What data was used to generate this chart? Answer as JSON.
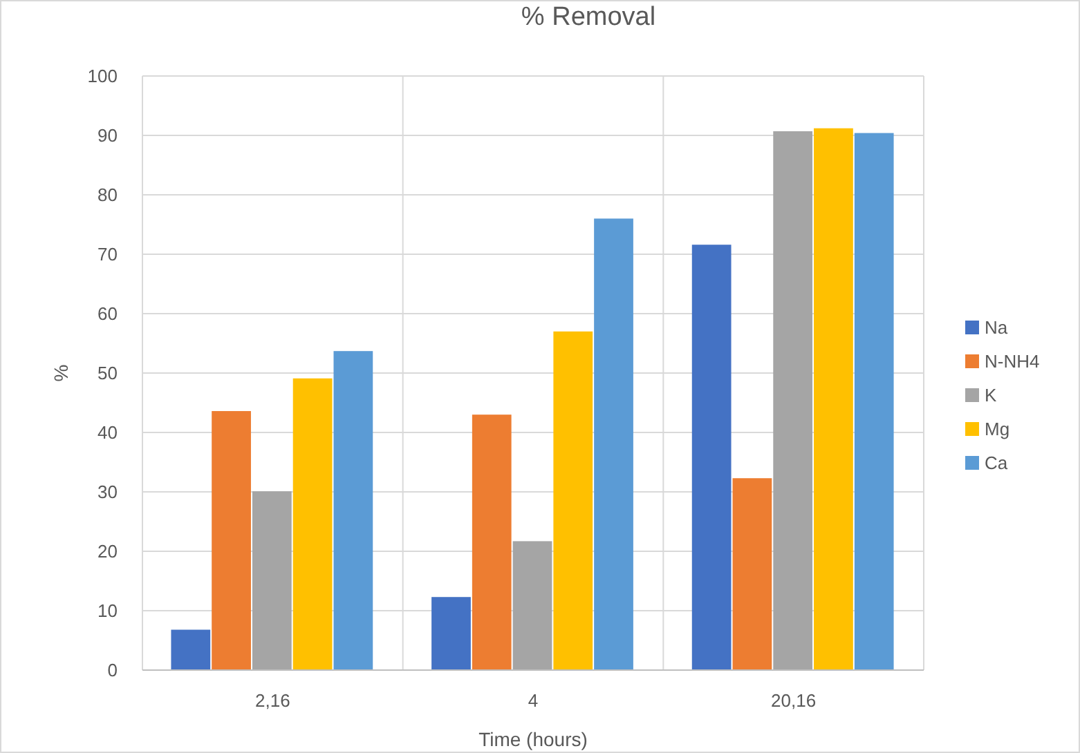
{
  "chart_data": {
    "type": "bar",
    "title": "% Removal",
    "xlabel": "Time (hours)",
    "ylabel": "%",
    "categories": [
      "2,16",
      "4",
      "20,16"
    ],
    "series": [
      {
        "name": "Na",
        "color": "#4472c4",
        "values": [
          6.8,
          12.3,
          71.6
        ]
      },
      {
        "name": "N-NH4",
        "color": "#ed7d31",
        "values": [
          43.6,
          43,
          32.3
        ]
      },
      {
        "name": "K",
        "color": "#a5a5a5",
        "values": [
          30.1,
          21.7,
          90.7
        ]
      },
      {
        "name": "Mg",
        "color": "#ffc000",
        "values": [
          49.1,
          57,
          91.2
        ]
      },
      {
        "name": "Ca",
        "color": "#5b9bd5",
        "values": [
          53.7,
          76,
          90.4
        ]
      }
    ],
    "ylim": [
      0,
      100
    ],
    "yticks": [
      0,
      10,
      20,
      30,
      40,
      50,
      60,
      70,
      80,
      90,
      100
    ],
    "grid": true,
    "legend": "right"
  }
}
